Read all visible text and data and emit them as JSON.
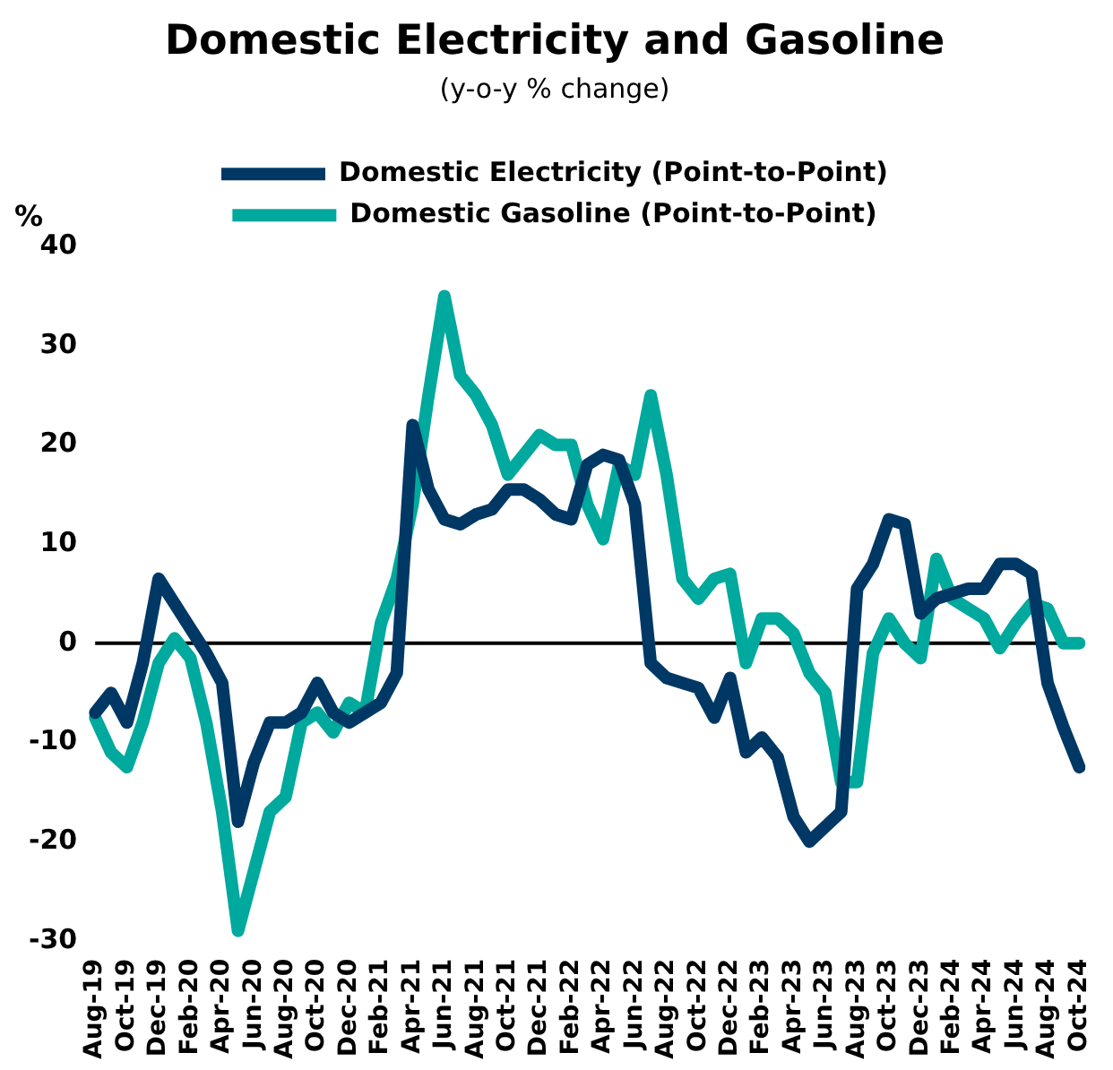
{
  "chart_data": {
    "type": "line",
    "title": "Domestic Electricity and Gasoline",
    "subtitle": "(y-o-y % change)",
    "ylabel": "%",
    "categories": [
      "Aug-19",
      null,
      "Oct-19",
      null,
      "Dec-19",
      null,
      "Feb-20",
      null,
      "Apr-20",
      null,
      "Jun-20",
      null,
      "Aug-20",
      null,
      "Oct-20",
      null,
      "Dec-20",
      null,
      "Feb-21",
      null,
      "Apr-21",
      null,
      "Jun-21",
      null,
      "Aug-21",
      null,
      "Oct-21",
      null,
      "Dec-21",
      null,
      "Feb-22",
      null,
      "Apr-22",
      null,
      "Jun-22",
      null,
      "Aug-22",
      null,
      "Oct-22",
      null,
      "Dec-22",
      null,
      "Feb-23",
      null,
      "Apr-23",
      null,
      "Jun-23",
      null,
      "Aug-23",
      null,
      "Oct-23",
      null,
      "Dec-23",
      null,
      "Feb-24",
      null,
      "Apr-24",
      null,
      "Jun-24",
      null,
      "Aug-24",
      null,
      "Oct-24"
    ],
    "series": [
      {
        "name": "Domestic Electricity (Point-to-Point)",
        "color": "#003865",
        "values": [
          -7,
          -5,
          -8,
          -2,
          6.5,
          4,
          1.5,
          -1,
          -4,
          -18,
          -12,
          -8,
          -8,
          -7,
          -4,
          -7,
          -8,
          -7,
          -6,
          -3,
          22,
          15.5,
          12.5,
          12,
          13,
          13.5,
          15.5,
          15.5,
          14.5,
          13,
          12.5,
          18,
          19,
          18.5,
          14,
          -2,
          -3.5,
          -4,
          -4.5,
          -7.5,
          -3.5,
          -11,
          -9.5,
          -11.5,
          -17.5,
          -20,
          -18.5,
          -17,
          5.5,
          8,
          12.5,
          12,
          3,
          4.5,
          5,
          5.5,
          5.5,
          8,
          8,
          7,
          -4,
          -8.5,
          -12.5
        ]
      },
      {
        "name": "Domestic Gasoline (Point-to-Point)",
        "color": "#00a99d",
        "values": [
          -7.5,
          -11,
          -12.5,
          -8,
          -2,
          0.5,
          -1.5,
          -8,
          -17,
          -29,
          -23,
          -17,
          -15.5,
          -8,
          -7,
          -9,
          -6,
          -7,
          2,
          6.5,
          14,
          25,
          35,
          27,
          25,
          22,
          17,
          19,
          21,
          20,
          20,
          14,
          10.5,
          18,
          17,
          25,
          17,
          6.5,
          4.5,
          6.5,
          7,
          -2,
          2.5,
          2.5,
          1,
          -3,
          -5,
          -14,
          -14,
          -1,
          2.5,
          0,
          -1.5,
          8.5,
          4.5,
          3.5,
          2.5,
          -0.5,
          2,
          4,
          3.5,
          0,
          0
        ]
      }
    ],
    "ylim": [
      -30,
      40
    ],
    "yticks": [
      -30,
      -20,
      -10,
      0,
      10,
      20,
      30,
      40
    ],
    "grid": false,
    "legend": "top",
    "marker": "none",
    "line_style": "solid",
    "ref_lines": [
      {
        "axis": "y",
        "value": 0,
        "color": "#000000"
      }
    ]
  }
}
